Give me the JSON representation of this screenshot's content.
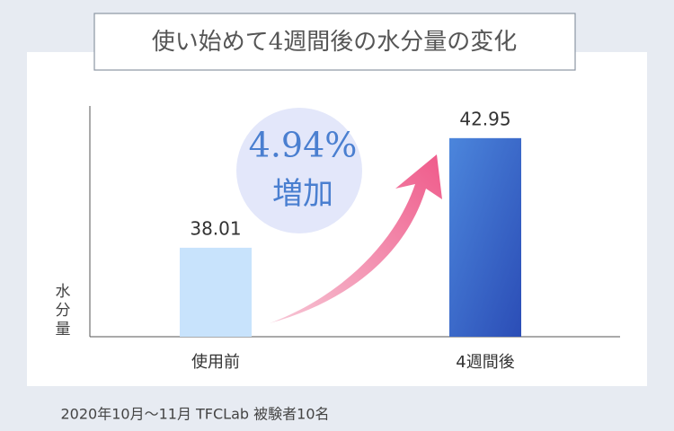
{
  "chart_data": {
    "type": "bar",
    "title": "使い始めて4週間後の水分量の変化",
    "y_label": "水分量",
    "categories": [
      "使用前",
      "4週間後"
    ],
    "values": [
      38.01,
      42.95
    ],
    "colors": [
      "#c8e3fc",
      "#3560c6"
    ],
    "ylim": [
      34,
      44.4
    ],
    "annotations": [
      "4.94%",
      "増加"
    ],
    "footnote": "2020年10月～11月 TFCLab 被験者10名"
  }
}
